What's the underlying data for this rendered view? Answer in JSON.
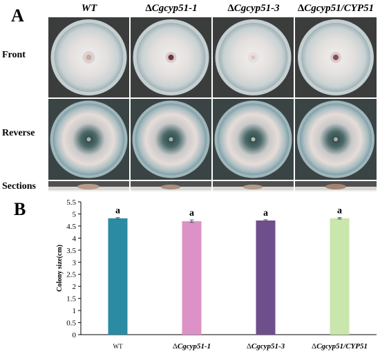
{
  "panel_a": {
    "letter": "A",
    "columns": [
      {
        "prefix": "",
        "italic": "WT"
      },
      {
        "prefix": "Δ",
        "italic": "Cgcyp51-1"
      },
      {
        "prefix": "Δ",
        "italic": "Cgcyp51-3"
      },
      {
        "prefix": "Δ",
        "italic": "Cgcyp51/CYP51"
      }
    ],
    "rows": {
      "front": "Front",
      "reverse": "Reverse",
      "sections": "Sections"
    }
  },
  "panel_b": {
    "letter": "B"
  },
  "colors": {
    "bar_wt": "#2b8ba3",
    "bar_mut1": "#dc92c6",
    "bar_mut3": "#6f4f8b",
    "bar_comp": "#c9e6ad",
    "axis": "#000000",
    "plate_front_rim": "#b9c4c6",
    "plate_front_center": "#e7e4e3",
    "plate_reverse_center": "#3f5654",
    "plate_reverse_mid": "#e4dcd8",
    "plate_reverse_edge": "#87a7ad"
  },
  "chart_data": {
    "type": "bar",
    "categories": [
      "WT",
      "ΔCgcyp51-1",
      "ΔCgcyp51-3",
      "ΔCgcyp51/CYP51"
    ],
    "values": [
      4.82,
      4.7,
      4.73,
      4.82
    ],
    "errors": [
      0.03,
      0.05,
      0.03,
      0.03
    ],
    "significance": [
      "a",
      "a",
      "a",
      "a"
    ],
    "ylabel": "Colony size(cm)",
    "xlabel": "",
    "ylim": [
      0,
      5.5
    ],
    "yticks": [
      "0",
      "0.5",
      "1",
      "1.5",
      "2",
      "2.5",
      "3",
      "3.5",
      "4",
      "4.5",
      "5",
      "5.5"
    ],
    "grid": false,
    "legend": "none"
  }
}
